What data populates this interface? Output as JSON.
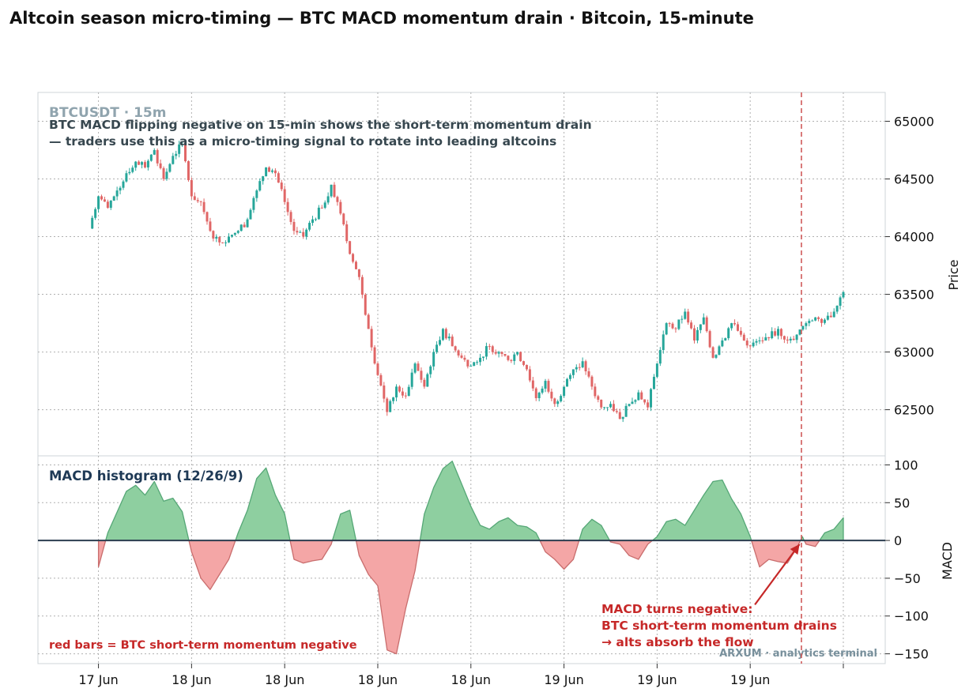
{
  "header": {
    "title": "Altcoin season micro-timing — BTC MACD momentum drain  ·  Bitcoin, 15-minute"
  },
  "colors": {
    "up": "#26a69a",
    "down": "#e06666",
    "hist_pos_fill": "#8ecfa0",
    "hist_pos_line": "#55a776",
    "hist_neg_fill": "#f4a6a6",
    "hist_neg_line": "#c96d6d",
    "zero_line": "#2c3e50",
    "marker": "#d05a5a",
    "annotation": "#c62828",
    "note_text": "#37474f",
    "symbol": "#90a4ae",
    "panel_title": "#1f3a56",
    "watermark": "#78909c"
  },
  "chart_data": [
    {
      "type": "candlestick",
      "symbol_label": "BTCUSDT · 15m",
      "note_lines": [
        "BTC MACD flipping negative on 15-min shows the short-term momentum drain",
        "— traders use this as a micro-timing signal to rotate into leading altcoins"
      ],
      "ylabel": "Price",
      "ylim": [
        62100,
        65250
      ],
      "yticks": [
        62500,
        63000,
        63500,
        64000,
        64500,
        65000
      ],
      "xlim": [
        -6.5,
        84.5
      ],
      "xtick_positions": [
        0,
        10,
        20,
        30,
        40,
        50,
        60,
        70,
        80
      ],
      "xtick_labels": [
        "17 Jun",
        "18 Jun",
        "18 Jun",
        "18 Jun",
        "18 Jun",
        "19 Jun",
        "19 Jun",
        "19 Jun",
        ""
      ],
      "marker_x": 75.5,
      "grid": true,
      "candles_close": [
        64350,
        64250,
        64400,
        64550,
        64650,
        64600,
        64750,
        64500,
        64700,
        64800,
        64350,
        64300,
        64050,
        63950,
        64000,
        64050,
        64150,
        64400,
        64600,
        64550,
        64300,
        64050,
        64000,
        64150,
        64250,
        64450,
        64200,
        63850,
        63650,
        63200,
        62800,
        62480,
        62700,
        62620,
        62900,
        62700,
        63000,
        63200,
        63050,
        62950,
        62880,
        62950,
        63050,
        63000,
        62930,
        63000,
        62850,
        62600,
        62750,
        62550,
        62700,
        62850,
        62920,
        62700,
        62520,
        62550,
        62420,
        62550,
        62650,
        62520,
        62900,
        63250,
        63200,
        63350,
        63100,
        63300,
        62950,
        63100,
        63250,
        63150,
        63050,
        63100,
        63120,
        63200,
        63100,
        63150,
        63250,
        63300,
        63280,
        63350,
        63520
      ]
    },
    {
      "type": "area",
      "title": "MACD histogram (12/26/9)",
      "ylabel": "MACD",
      "ylim": [
        -163,
        112
      ],
      "yticks": [
        -150,
        -100,
        -50,
        0,
        50,
        100
      ],
      "points": [
        [
          0,
          -35
        ],
        [
          1,
          10
        ],
        [
          3,
          65
        ],
        [
          4,
          73
        ],
        [
          5,
          60
        ],
        [
          6,
          78
        ],
        [
          7,
          52
        ],
        [
          8,
          56
        ],
        [
          9,
          38
        ],
        [
          10,
          -15
        ],
        [
          11,
          -50
        ],
        [
          12,
          -65
        ],
        [
          13,
          -45
        ],
        [
          14,
          -25
        ],
        [
          15,
          10
        ],
        [
          16,
          40
        ],
        [
          17,
          82
        ],
        [
          18,
          96
        ],
        [
          19,
          60
        ],
        [
          20,
          35
        ],
        [
          21,
          -25
        ],
        [
          22,
          -30
        ],
        [
          23,
          -27
        ],
        [
          24,
          -25
        ],
        [
          25,
          -5
        ],
        [
          26,
          35
        ],
        [
          27,
          40
        ],
        [
          28,
          -20
        ],
        [
          29,
          -45
        ],
        [
          30,
          -60
        ],
        [
          31,
          -145
        ],
        [
          32,
          -150
        ],
        [
          33,
          -90
        ],
        [
          34,
          -40
        ],
        [
          35,
          35
        ],
        [
          36,
          70
        ],
        [
          37,
          95
        ],
        [
          38,
          105
        ],
        [
          39,
          75
        ],
        [
          40,
          45
        ],
        [
          41,
          20
        ],
        [
          42,
          15
        ],
        [
          43,
          25
        ],
        [
          44,
          30
        ],
        [
          45,
          20
        ],
        [
          46,
          18
        ],
        [
          47,
          10
        ],
        [
          48,
          -15
        ],
        [
          49,
          -25
        ],
        [
          50,
          -38
        ],
        [
          51,
          -25
        ],
        [
          52,
          15
        ],
        [
          53,
          28
        ],
        [
          54,
          20
        ],
        [
          55,
          -2
        ],
        [
          56,
          -5
        ],
        [
          57,
          -20
        ],
        [
          58,
          -25
        ],
        [
          59,
          -5
        ],
        [
          60,
          5
        ],
        [
          61,
          25
        ],
        [
          62,
          28
        ],
        [
          63,
          20
        ],
        [
          64,
          40
        ],
        [
          65,
          60
        ],
        [
          66,
          78
        ],
        [
          67,
          80
        ],
        [
          68,
          55
        ],
        [
          69,
          35
        ],
        [
          70,
          5
        ],
        [
          71,
          -35
        ],
        [
          72,
          -25
        ],
        [
          73,
          -28
        ],
        [
          74,
          -30
        ],
        [
          75,
          -10
        ],
        [
          75.6,
          5
        ],
        [
          76,
          -5
        ],
        [
          77,
          -8
        ],
        [
          78,
          10
        ],
        [
          79,
          15
        ],
        [
          80,
          30
        ]
      ]
    }
  ],
  "annotation": {
    "lines": [
      "MACD turns negative:",
      "BTC short-term momentum drains",
      "→ alts absorb the flow"
    ],
    "arrow_from": [
      70.5,
      -85
    ],
    "arrow_to": [
      75.3,
      -5
    ]
  },
  "bottom_note": "red bars = BTC short-term momentum negative",
  "watermark": "ARXUM · analytics terminal"
}
